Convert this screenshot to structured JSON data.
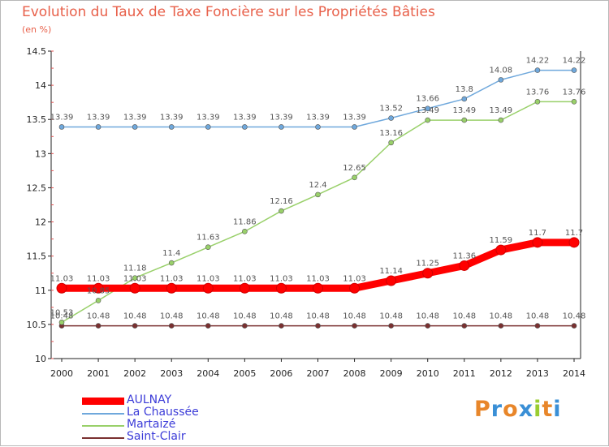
{
  "chart_data": {
    "type": "line",
    "title": "Evolution du Taux de Taxe Foncière sur les Propriétés Bâties",
    "subtitle": "(en %)",
    "x": [
      "2000",
      "2001",
      "2002",
      "2003",
      "2004",
      "2005",
      "2006",
      "2007",
      "2008",
      "2009",
      "2010",
      "2011",
      "2012",
      "2013",
      "2014"
    ],
    "ylim": [
      10,
      14.5
    ],
    "yticks": [
      "10",
      "10.5",
      "11",
      "11.5",
      "12",
      "12.5",
      "13",
      "13.5",
      "14",
      "14.5"
    ],
    "grid": false,
    "legend_position": "bottom-left",
    "series": [
      {
        "name": "AULNAY",
        "color": "#ff0000",
        "values": [
          11.03,
          11.03,
          11.03,
          11.03,
          11.03,
          11.03,
          11.03,
          11.03,
          11.03,
          11.14,
          11.25,
          11.36,
          11.59,
          11.7,
          11.7
        ],
        "labels": [
          "11.03",
          "11.03",
          "11.03",
          "11.03",
          "11.03",
          "11.03",
          "11.03",
          "11.03",
          "11.03",
          "11.14",
          "11.25",
          "11.36",
          "11.59",
          "11.7",
          "11.7"
        ]
      },
      {
        "name": "La Chaussée",
        "color": "#6fa8dc",
        "values": [
          13.39,
          13.39,
          13.39,
          13.39,
          13.39,
          13.39,
          13.39,
          13.39,
          13.39,
          13.52,
          13.66,
          13.8,
          14.08,
          14.22,
          14.22
        ],
        "labels": [
          "13.39",
          "13.39",
          "13.39",
          "13.39",
          "13.39",
          "13.39",
          "13.39",
          "13.39",
          "13.39",
          "13.52",
          "13.66",
          "13.8",
          "14.08",
          "14.22",
          "14.22"
        ]
      },
      {
        "name": "Martaizé",
        "color": "#99d06a",
        "values": [
          10.53,
          10.85,
          11.18,
          11.4,
          11.63,
          11.86,
          12.16,
          12.4,
          12.65,
          13.16,
          13.49,
          13.49,
          13.49,
          13.76,
          13.76
        ],
        "labels": [
          "10.53",
          "10.85",
          "11.18",
          "11.4",
          "11.63",
          "11.86",
          "12.16",
          "12.4",
          "12.65",
          "13.16",
          "13.49",
          "13.49",
          "13.49",
          "13.76",
          "13.76"
        ]
      },
      {
        "name": "Saint-Clair",
        "color": "#7a3030",
        "values": [
          10.48,
          10.48,
          10.48,
          10.48,
          10.48,
          10.48,
          10.48,
          10.48,
          10.48,
          10.48,
          10.48,
          10.48,
          10.48,
          10.48,
          10.48
        ],
        "labels": [
          "10.48",
          "10.48",
          "10.48",
          "10.48",
          "10.48",
          "10.48",
          "10.48",
          "10.48",
          "10.48",
          "10.48",
          "10.48",
          "10.48",
          "10.48",
          "10.48",
          "10.48"
        ]
      }
    ]
  },
  "logo": {
    "letters": [
      "P",
      "r",
      "o",
      "x",
      "i",
      "t",
      "i"
    ],
    "colors": [
      "#e8862a",
      "#3a8fd6",
      "#e8862a",
      "#3a8fd6",
      "#9acd32",
      "#e8862a",
      "#3a8fd6"
    ]
  }
}
